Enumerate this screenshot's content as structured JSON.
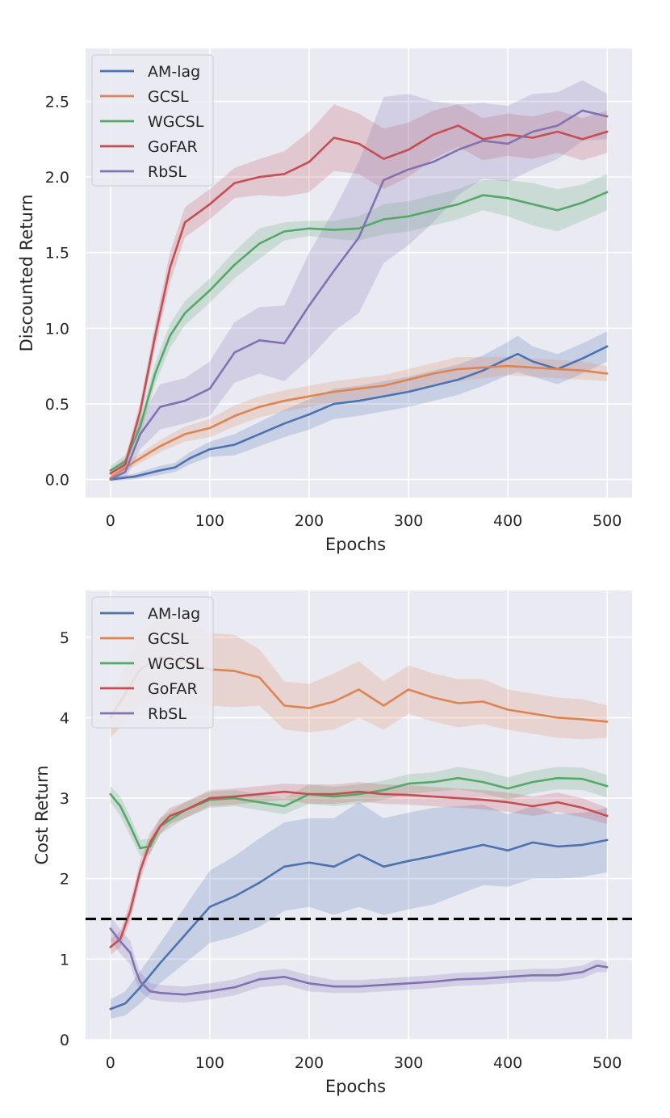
{
  "colors": {
    "background": "#eaeaf2",
    "grid": "#ffffff",
    "text": "#262626",
    "threshold": "#000000"
  },
  "chart_data": [
    {
      "type": "line",
      "title": "",
      "xlabel": "Epochs",
      "ylabel": "Discounted Return",
      "xlim": [
        -25,
        525
      ],
      "ylim": [
        -0.12,
        2.85
      ],
      "xticks": [
        0,
        100,
        200,
        300,
        400,
        500
      ],
      "yticks": [
        0.0,
        0.5,
        1.0,
        1.5,
        2.0,
        2.5
      ],
      "ytick_labels": [
        "0.0",
        "0.5",
        "1.0",
        "1.5",
        "2.0",
        "2.5"
      ],
      "xtick_labels": [
        "0",
        "100",
        "200",
        "300",
        "400",
        "500"
      ],
      "legend": "top-left",
      "series": [
        {
          "name": "AM-lag",
          "color": "#4c72b0",
          "x": [
            0,
            25,
            50,
            65,
            80,
            100,
            125,
            150,
            175,
            200,
            225,
            250,
            275,
            300,
            325,
            350,
            375,
            400,
            410,
            425,
            450,
            475,
            500
          ],
          "y": [
            0.0,
            0.02,
            0.06,
            0.08,
            0.14,
            0.2,
            0.23,
            0.3,
            0.37,
            0.43,
            0.5,
            0.52,
            0.55,
            0.58,
            0.62,
            0.66,
            0.72,
            0.8,
            0.83,
            0.78,
            0.73,
            0.8,
            0.88
          ],
          "err": [
            0.01,
            0.02,
            0.03,
            0.03,
            0.04,
            0.05,
            0.07,
            0.08,
            0.09,
            0.1,
            0.1,
            0.1,
            0.1,
            0.1,
            0.1,
            0.1,
            0.1,
            0.11,
            0.12,
            0.1,
            0.1,
            0.1,
            0.1
          ]
        },
        {
          "name": "GCSL",
          "color": "#dd8452",
          "x": [
            0,
            25,
            50,
            75,
            100,
            125,
            150,
            175,
            200,
            225,
            250,
            275,
            300,
            325,
            350,
            375,
            400,
            425,
            450,
            475,
            500
          ],
          "y": [
            0.01,
            0.12,
            0.22,
            0.3,
            0.34,
            0.42,
            0.48,
            0.52,
            0.55,
            0.58,
            0.6,
            0.62,
            0.66,
            0.7,
            0.73,
            0.74,
            0.75,
            0.74,
            0.73,
            0.72,
            0.7
          ],
          "err": [
            0.02,
            0.03,
            0.04,
            0.05,
            0.06,
            0.07,
            0.07,
            0.07,
            0.07,
            0.07,
            0.07,
            0.07,
            0.07,
            0.07,
            0.08,
            0.07,
            0.06,
            0.06,
            0.06,
            0.06,
            0.05
          ]
        },
        {
          "name": "WGCSL",
          "color": "#55a868",
          "x": [
            0,
            15,
            30,
            45,
            60,
            75,
            100,
            125,
            150,
            175,
            200,
            225,
            250,
            275,
            300,
            325,
            350,
            375,
            400,
            425,
            450,
            475,
            500
          ],
          "y": [
            0.06,
            0.12,
            0.35,
            0.7,
            0.95,
            1.1,
            1.25,
            1.42,
            1.56,
            1.64,
            1.66,
            1.65,
            1.66,
            1.72,
            1.74,
            1.78,
            1.82,
            1.88,
            1.86,
            1.82,
            1.78,
            1.83,
            1.9
          ],
          "err": [
            0.03,
            0.04,
            0.06,
            0.07,
            0.08,
            0.08,
            0.08,
            0.09,
            0.1,
            0.06,
            0.05,
            0.06,
            0.08,
            0.1,
            0.1,
            0.1,
            0.1,
            0.1,
            0.12,
            0.14,
            0.14,
            0.12,
            0.12
          ]
        },
        {
          "name": "GoFAR",
          "color": "#c44e52",
          "x": [
            0,
            15,
            30,
            45,
            60,
            75,
            100,
            125,
            150,
            175,
            200,
            225,
            250,
            275,
            300,
            325,
            350,
            375,
            400,
            425,
            450,
            475,
            500
          ],
          "y": [
            0.04,
            0.1,
            0.45,
            0.95,
            1.4,
            1.7,
            1.82,
            1.96,
            2.0,
            2.02,
            2.1,
            2.26,
            2.22,
            2.12,
            2.18,
            2.28,
            2.34,
            2.25,
            2.28,
            2.26,
            2.3,
            2.25,
            2.3
          ],
          "err": [
            0.02,
            0.04,
            0.06,
            0.08,
            0.1,
            0.1,
            0.1,
            0.1,
            0.12,
            0.15,
            0.2,
            0.22,
            0.2,
            0.2,
            0.18,
            0.16,
            0.14,
            0.14,
            0.14,
            0.14,
            0.14,
            0.14,
            0.14
          ]
        },
        {
          "name": "RbSL",
          "color": "#8172b2",
          "x": [
            0,
            15,
            30,
            50,
            75,
            100,
            125,
            150,
            175,
            200,
            225,
            250,
            275,
            300,
            325,
            350,
            375,
            400,
            425,
            450,
            475,
            500
          ],
          "y": [
            0.0,
            0.05,
            0.3,
            0.48,
            0.52,
            0.6,
            0.84,
            0.92,
            0.9,
            1.15,
            1.38,
            1.6,
            1.98,
            2.05,
            2.1,
            2.18,
            2.24,
            2.22,
            2.3,
            2.34,
            2.44,
            2.4
          ],
          "err": [
            0.01,
            0.05,
            0.1,
            0.15,
            0.15,
            0.18,
            0.2,
            0.22,
            0.25,
            0.35,
            0.4,
            0.5,
            0.55,
            0.5,
            0.4,
            0.3,
            0.25,
            0.25,
            0.25,
            0.22,
            0.2,
            0.15
          ]
        }
      ]
    },
    {
      "type": "line",
      "title": "",
      "xlabel": "Epochs",
      "ylabel": "Cost Return",
      "xlim": [
        -25,
        525
      ],
      "ylim": [
        0,
        5.58
      ],
      "xticks": [
        0,
        100,
        200,
        300,
        400,
        500
      ],
      "yticks": [
        0,
        1,
        2,
        3,
        4,
        5
      ],
      "ytick_labels": [
        "0",
        "1",
        "2",
        "3",
        "4",
        "5"
      ],
      "xtick_labels": [
        "0",
        "100",
        "200",
        "300",
        "400",
        "500"
      ],
      "legend": "top-left",
      "threshold": 1.5,
      "series": [
        {
          "name": "AM-lag",
          "color": "#4c72b0",
          "x": [
            0,
            15,
            30,
            50,
            75,
            100,
            125,
            150,
            175,
            200,
            225,
            250,
            275,
            300,
            325,
            350,
            375,
            400,
            425,
            450,
            475,
            500
          ],
          "y": [
            0.38,
            0.45,
            0.65,
            0.95,
            1.3,
            1.65,
            1.78,
            1.95,
            2.15,
            2.2,
            2.15,
            2.3,
            2.15,
            2.22,
            2.28,
            2.35,
            2.42,
            2.35,
            2.45,
            2.4,
            2.42,
            2.48
          ],
          "err": [
            0.12,
            0.15,
            0.2,
            0.25,
            0.35,
            0.45,
            0.5,
            0.55,
            0.55,
            0.55,
            0.6,
            0.65,
            0.6,
            0.6,
            0.6,
            0.55,
            0.5,
            0.45,
            0.45,
            0.4,
            0.4,
            0.4
          ]
        },
        {
          "name": "GCSL",
          "color": "#dd8452",
          "x": [
            0,
            15,
            30,
            50,
            75,
            100,
            125,
            150,
            175,
            200,
            225,
            250,
            275,
            300,
            325,
            350,
            375,
            400,
            425,
            450,
            475,
            500
          ],
          "y": [
            4.0,
            4.3,
            4.6,
            4.75,
            4.7,
            4.6,
            4.58,
            4.5,
            4.15,
            4.12,
            4.2,
            4.35,
            4.15,
            4.35,
            4.25,
            4.18,
            4.2,
            4.1,
            4.05,
            4.0,
            3.98,
            3.95
          ],
          "err": [
            0.25,
            0.35,
            0.45,
            0.5,
            0.5,
            0.45,
            0.45,
            0.35,
            0.3,
            0.3,
            0.35,
            0.35,
            0.3,
            0.3,
            0.3,
            0.3,
            0.28,
            0.25,
            0.25,
            0.25,
            0.25,
            0.2
          ]
        },
        {
          "name": "WGCSL",
          "color": "#55a868",
          "x": [
            0,
            10,
            20,
            30,
            40,
            50,
            75,
            100,
            125,
            150,
            175,
            200,
            225,
            250,
            275,
            300,
            325,
            350,
            375,
            400,
            425,
            450,
            475,
            500
          ],
          "y": [
            3.05,
            2.9,
            2.65,
            2.38,
            2.4,
            2.65,
            2.85,
            2.98,
            3.0,
            2.95,
            2.9,
            3.05,
            3.02,
            3.05,
            3.1,
            3.18,
            3.2,
            3.25,
            3.2,
            3.12,
            3.2,
            3.25,
            3.24,
            3.15
          ],
          "err": [
            0.1,
            0.12,
            0.12,
            0.1,
            0.1,
            0.1,
            0.1,
            0.1,
            0.1,
            0.1,
            0.1,
            0.12,
            0.12,
            0.12,
            0.12,
            0.12,
            0.12,
            0.14,
            0.14,
            0.14,
            0.14,
            0.14,
            0.14,
            0.14
          ]
        },
        {
          "name": "GoFAR",
          "color": "#c44e52",
          "x": [
            0,
            10,
            20,
            30,
            40,
            50,
            60,
            75,
            100,
            125,
            150,
            175,
            200,
            225,
            250,
            275,
            300,
            325,
            350,
            375,
            400,
            425,
            450,
            475,
            500
          ],
          "y": [
            1.15,
            1.25,
            1.6,
            2.1,
            2.45,
            2.65,
            2.78,
            2.85,
            3.0,
            3.02,
            3.05,
            3.08,
            3.05,
            3.05,
            3.08,
            3.05,
            3.04,
            3.02,
            3.0,
            2.98,
            2.95,
            2.9,
            2.95,
            2.88,
            2.78
          ],
          "err": [
            0.1,
            0.1,
            0.12,
            0.12,
            0.12,
            0.1,
            0.1,
            0.1,
            0.1,
            0.1,
            0.1,
            0.1,
            0.12,
            0.12,
            0.12,
            0.12,
            0.12,
            0.12,
            0.12,
            0.12,
            0.12,
            0.12,
            0.12,
            0.12,
            0.1
          ]
        },
        {
          "name": "RbSL",
          "color": "#8172b2",
          "x": [
            0,
            10,
            20,
            25,
            30,
            40,
            50,
            75,
            100,
            125,
            150,
            175,
            200,
            225,
            250,
            275,
            300,
            325,
            350,
            375,
            400,
            425,
            450,
            475,
            490,
            500
          ],
          "y": [
            1.38,
            1.22,
            1.08,
            0.88,
            0.72,
            0.6,
            0.58,
            0.56,
            0.6,
            0.65,
            0.75,
            0.78,
            0.7,
            0.66,
            0.66,
            0.68,
            0.7,
            0.72,
            0.75,
            0.76,
            0.78,
            0.8,
            0.8,
            0.84,
            0.92,
            0.9
          ],
          "err": [
            0.15,
            0.15,
            0.15,
            0.14,
            0.12,
            0.1,
            0.1,
            0.1,
            0.1,
            0.1,
            0.1,
            0.1,
            0.1,
            0.08,
            0.08,
            0.08,
            0.08,
            0.08,
            0.08,
            0.08,
            0.08,
            0.08,
            0.08,
            0.08,
            0.08,
            0.06
          ]
        }
      ]
    }
  ]
}
